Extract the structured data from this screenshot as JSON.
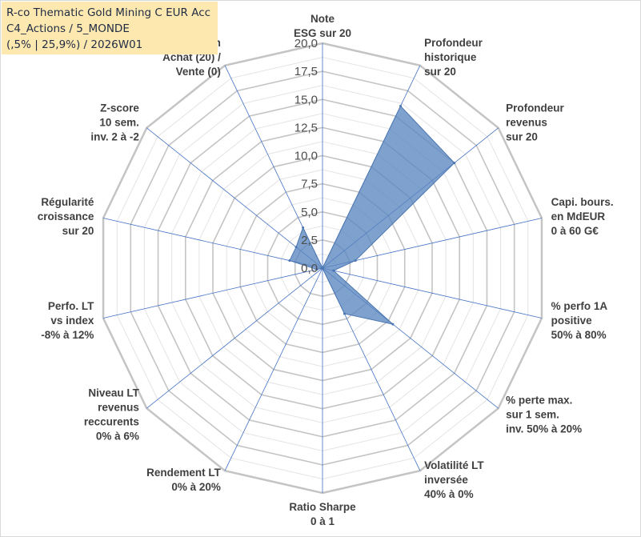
{
  "title_box": {
    "line1": "R-co Thematic Gold Mining C EUR Acc",
    "line2": "C4_Actions / 5_MONDE",
    "line3": "(,5% | 25,9%) / 2026W01"
  },
  "chart_data": {
    "type": "radar",
    "title": "R-co Thematic Gold Mining C EUR Acc",
    "ylim": [
      0,
      20
    ],
    "ticks": [
      "0,0",
      "2,5",
      "5,0",
      "7,5",
      "10,0",
      "12,5",
      "15,0",
      "17,5",
      "20,0"
    ],
    "tick_values": [
      0,
      2.5,
      5,
      7.5,
      10,
      12.5,
      15,
      17.5,
      20
    ],
    "grid": true,
    "axes": [
      {
        "lines": [
          "Note",
          "ESG sur 20"
        ]
      },
      {
        "lines": [
          "Profondeur",
          "historique",
          "sur 20"
        ]
      },
      {
        "lines": [
          "Profondeur",
          "revenus",
          "sur 20"
        ]
      },
      {
        "lines": [
          "Capi. bours.",
          "en MdEUR",
          "0 à 60 G€"
        ]
      },
      {
        "lines": [
          "% perfo 1A",
          "positive",
          "50% à 80%"
        ]
      },
      {
        "lines": [
          "% perte max.",
          "sur 1 sem.",
          "inv. 50% à 20%"
        ]
      },
      {
        "lines": [
          "Volatilité LT",
          "inversée",
          "40% à 0%"
        ]
      },
      {
        "lines": [
          "Ratio Sharpe",
          "0 à 1"
        ]
      },
      {
        "lines": [
          "Rendement LT",
          "0% à 20%"
        ]
      },
      {
        "lines": [
          "Niveau LT",
          "revenus",
          "reccurents",
          "0% à 6%"
        ]
      },
      {
        "lines": [
          "Perfo. LT",
          "vs index",
          "-8% à 12%"
        ]
      },
      {
        "lines": [
          "Régularité",
          "croissance",
          "sur 20"
        ]
      },
      {
        "lines": [
          "Z-score",
          "10 sem.",
          "inv. 2 à -2"
        ]
      },
      {
        "lines": [
          "Momentum",
          "Achat (20) /",
          "Vente (0)"
        ]
      }
    ],
    "series": [
      {
        "name": "R-co Thematic Gold Mining C EUR Acc",
        "values": [
          0,
          16,
          15,
          3,
          1,
          8,
          4.5,
          0,
          0,
          0,
          0.5,
          3,
          3,
          4
        ]
      }
    ],
    "colors": {
      "fill": "#5b87c0",
      "fill_opacity": 0.78,
      "stroke": "#4a76b0",
      "grid": "#c8c8c8",
      "spoke": "#4472c4"
    }
  }
}
